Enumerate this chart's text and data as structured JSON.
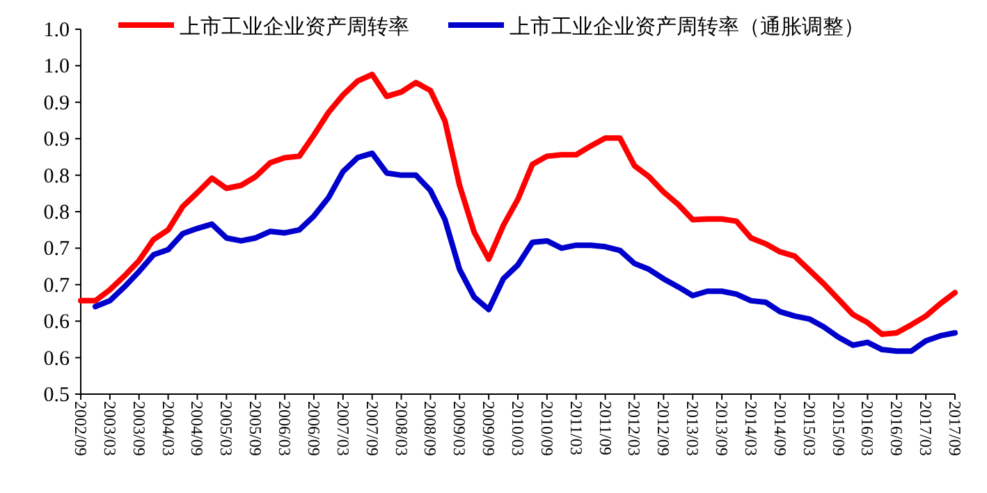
{
  "chart_data": {
    "type": "line",
    "legend": "top",
    "grid": false,
    "line_style": "solid",
    "categories": [
      "2002/09",
      null,
      "2003/03",
      null,
      "2003/09",
      null,
      "2004/03",
      null,
      "2004/09",
      null,
      "2005/03",
      null,
      "2005/09",
      null,
      "2006/03",
      null,
      "2006/09",
      null,
      "2007/03",
      null,
      "2007/09",
      null,
      "2008/03",
      null,
      "2008/09",
      null,
      "2009/03",
      null,
      "2009/09",
      null,
      "2010/03",
      null,
      "2010/09",
      null,
      "2011/03",
      null,
      "2011/09",
      null,
      "2012/03",
      null,
      "2012/09",
      null,
      "2013/03",
      null,
      "2013/09",
      null,
      "2014/03",
      null,
      "2014/09",
      null,
      "2015/03",
      null,
      "2015/09",
      null,
      "2016/03",
      null,
      "2016/09",
      null,
      "2017/03",
      null,
      "2017/09"
    ],
    "ylim": [
      0.5,
      1.0
    ],
    "yticks": [
      {
        "value": 0.5,
        "label": "0.5"
      },
      {
        "value": 0.55,
        "label": "0.6"
      },
      {
        "value": 0.6,
        "label": "0.6"
      },
      {
        "value": 0.65,
        "label": "0.7"
      },
      {
        "value": 0.7,
        "label": "0.7"
      },
      {
        "value": 0.75,
        "label": "0.8"
      },
      {
        "value": 0.8,
        "label": "0.8"
      },
      {
        "value": 0.85,
        "label": "0.9"
      },
      {
        "value": 0.9,
        "label": "0.9"
      },
      {
        "value": 0.95,
        "label": "1.0"
      },
      {
        "value": 1.0,
        "label": "1.0"
      }
    ],
    "series": [
      {
        "name": "上市工业企业资产周转率",
        "color": "#ff0000",
        "values": [
          0.628,
          0.628,
          0.643,
          0.662,
          0.683,
          0.712,
          0.725,
          0.757,
          0.776,
          0.796,
          0.782,
          0.786,
          0.798,
          0.817,
          0.824,
          0.826,
          0.855,
          0.886,
          0.91,
          0.929,
          0.938,
          0.908,
          0.914,
          0.927,
          0.916,
          0.874,
          0.786,
          0.722,
          0.685,
          0.731,
          0.767,
          0.815,
          0.826,
          0.828,
          0.828,
          0.84,
          0.851,
          0.851,
          0.813,
          0.798,
          0.777,
          0.76,
          0.739,
          0.74,
          0.74,
          0.737,
          0.714,
          0.706,
          0.695,
          0.689,
          0.67,
          0.651,
          0.63,
          0.609,
          0.598,
          0.582,
          0.584,
          0.595,
          0.607,
          0.624,
          0.639
        ]
      },
      {
        "name": "上市工业企业资产周转率（通胀调整）",
        "color": "#0000cc",
        "values": [
          null,
          0.62,
          0.628,
          0.647,
          0.668,
          0.691,
          0.698,
          0.72,
          0.727,
          0.733,
          0.714,
          0.71,
          0.714,
          0.723,
          0.721,
          0.725,
          0.744,
          0.769,
          0.805,
          0.824,
          0.83,
          0.803,
          0.8,
          0.8,
          0.779,
          0.739,
          0.671,
          0.633,
          0.616,
          0.658,
          0.677,
          0.708,
          0.71,
          0.7,
          0.704,
          0.704,
          0.702,
          0.697,
          0.679,
          0.671,
          0.658,
          0.647,
          0.635,
          0.641,
          0.641,
          0.637,
          0.628,
          0.626,
          0.613,
          0.607,
          0.603,
          0.592,
          0.578,
          0.567,
          0.571,
          0.561,
          0.559,
          0.559,
          0.573,
          0.58,
          0.584
        ]
      }
    ]
  }
}
